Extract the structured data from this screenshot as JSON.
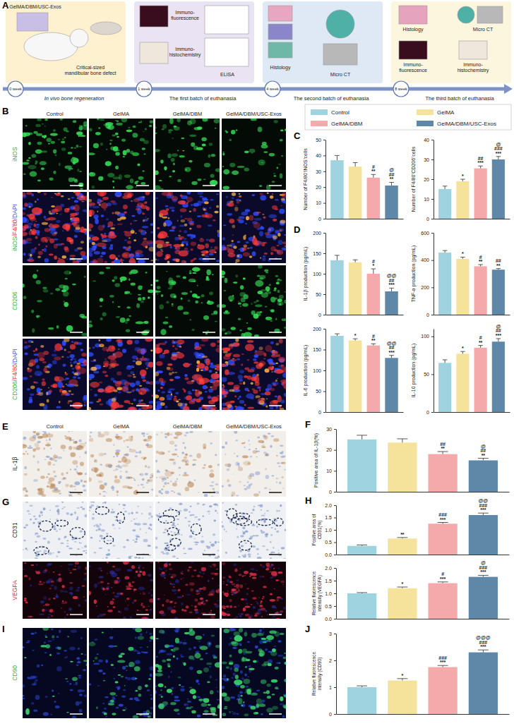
{
  "panel_labels": [
    "A",
    "B",
    "C",
    "D",
    "E",
    "F",
    "G",
    "H",
    "I",
    "J"
  ],
  "schematic": {
    "stages": [
      {
        "week": "0 week",
        "caption": "In vivo bone regeneration",
        "items": [
          [
            "GelMA/DBM/USC-Exos"
          ],
          [
            "Critical-sized",
            "mandibular bone defect"
          ]
        ]
      },
      {
        "week": "1 week",
        "caption": "The first batch of euthanasia",
        "items": [
          [
            "Immuno-",
            "fluorescence"
          ],
          [
            "Immuno-",
            "histochemistry"
          ],
          [
            "ELISA"
          ]
        ]
      },
      {
        "week": "4 week",
        "caption": "The second batch of euthanasia",
        "items": [
          [
            "Histology"
          ],
          [
            "Micro CT"
          ]
        ]
      },
      {
        "week": "8 week",
        "caption": "The third batch of euthanasia",
        "items": [
          [
            "Histology"
          ],
          [
            "Micro CT"
          ],
          [
            "Immuno-",
            "fluorescence"
          ],
          [
            "Immuno-",
            "histochemistry"
          ]
        ]
      }
    ]
  },
  "legend": [
    {
      "name": "Control",
      "color": "#9fd3df"
    },
    {
      "name": "GelMA",
      "color": "#f6e39b"
    },
    {
      "name": "GelMA/DBM",
      "color": "#f4a9ab"
    },
    {
      "name": "GelMA/DBM/USC-Exos",
      "color": "#5f88a8"
    }
  ],
  "image_panels": [
    {
      "columns": [
        "Control",
        "GelMA",
        "GelMA/DBM",
        "GelMA/DBM/USC-Exos"
      ],
      "rows": [
        {
          "label": [
            "iNOS"
          ],
          "colors": [
            "#2fb34c"
          ]
        },
        {
          "label": [
            "iNOS",
            "/F4/80",
            "/DAPI"
          ],
          "colors": [
            "#2fb34c",
            "#e53b3b",
            "#3a4fe0"
          ]
        },
        {
          "label": [
            "CD206"
          ],
          "colors": [
            "#2fb34c"
          ]
        },
        {
          "label": [
            "CD206",
            "/F4/80",
            "/DAPI"
          ],
          "colors": [
            "#2fb34c",
            "#e53b3b",
            "#3a4fe0"
          ]
        }
      ]
    },
    {
      "columns": [
        "Control",
        "GelMA",
        "GelMA/DBM",
        "GelMA/DBM/USC-Exos"
      ],
      "rows": [
        {
          "label": [
            "IL-1β"
          ],
          "colors": [
            "#222222"
          ]
        }
      ]
    },
    {
      "rows": [
        {
          "label": [
            "CD31"
          ],
          "colors": [
            "#222222"
          ]
        },
        {
          "label": [
            "VEGFA"
          ],
          "colors": [
            "#d02c3c"
          ]
        }
      ]
    },
    {
      "rows": [
        {
          "label": [
            "CD90"
          ],
          "colors": [
            "#2fb34c"
          ]
        }
      ]
    }
  ],
  "chart_data": [
    {
      "type": "bar",
      "ylabel": "Number of F4/80⁺iNOS⁺cells",
      "categories": [
        null,
        null,
        null,
        null
      ],
      "values": [
        37,
        33,
        26,
        21
      ],
      "errors": [
        3,
        2.5,
        2,
        2
      ],
      "colors": [
        "#9fd3df",
        "#f6e39b",
        "#f4a9ab",
        "#5f88a8"
      ],
      "annotations": [
        [],
        [],
        [
          "#",
          "**"
        ],
        [
          "@",
          "##",
          "**"
        ]
      ],
      "ylim": [
        0,
        50
      ],
      "yticks": [
        0,
        10,
        20,
        30,
        40,
        50
      ],
      "tick_labels": "y"
    },
    {
      "type": "bar",
      "ylabel": "Number of F4/80⁺CD206⁺cells",
      "categories": [
        null,
        null,
        null,
        null
      ],
      "values": [
        15,
        19,
        25.5,
        30
      ],
      "errors": [
        1.5,
        1,
        1.2,
        1.5
      ],
      "colors": [
        "#9fd3df",
        "#f6e39b",
        "#f4a9ab",
        "#5f88a8"
      ],
      "annotations": [
        [],
        [
          "*"
        ],
        [
          "##",
          "***"
        ],
        [
          "@",
          "###",
          "***"
        ]
      ],
      "ylim": [
        0,
        40
      ],
      "yticks": [
        0,
        10,
        20,
        30,
        40
      ],
      "tick_labels": "y"
    },
    {
      "type": "bar",
      "ylabel": "IL-1β production (pg/mL)",
      "categories": [
        null,
        null,
        null,
        null
      ],
      "values": [
        133,
        128,
        100,
        57
      ],
      "errors": [
        12,
        6,
        12,
        8
      ],
      "colors": [
        "#9fd3df",
        "#f6e39b",
        "#f4a9ab",
        "#5f88a8"
      ],
      "annotations": [
        [],
        [],
        [
          "#",
          "*"
        ],
        [
          "@@",
          "##",
          "***"
        ]
      ],
      "ylim": [
        0,
        200
      ],
      "yticks": [
        0,
        50,
        100,
        150,
        200
      ],
      "tick_labels": "y"
    },
    {
      "type": "bar",
      "ylabel": "TNF-α production (pg/mL)",
      "categories": [
        null,
        null,
        null,
        null
      ],
      "values": [
        455,
        410,
        355,
        330
      ],
      "errors": [
        15,
        12,
        12,
        8
      ],
      "colors": [
        "#9fd3df",
        "#f6e39b",
        "#f4a9ab",
        "#5f88a8"
      ],
      "annotations": [
        [],
        [
          "*"
        ],
        [
          "#",
          "**"
        ],
        [
          "##",
          "**"
        ]
      ],
      "ylim": [
        0,
        600
      ],
      "yticks": [
        0,
        200,
        400,
        600
      ],
      "tick_labels": "y"
    },
    {
      "type": "bar",
      "ylabel": "IL-6 production (pg/mL)",
      "categories": [
        null,
        null,
        null,
        null
      ],
      "values": [
        183,
        172,
        160,
        130
      ],
      "errors": [
        5,
        4,
        4,
        6
      ],
      "colors": [
        "#9fd3df",
        "#f6e39b",
        "#f4a9ab",
        "#5f88a8"
      ],
      "annotations": [
        [],
        [
          "*"
        ],
        [
          "#",
          "**"
        ],
        [
          "@@",
          "##",
          "***"
        ]
      ],
      "ylim": [
        0,
        200
      ],
      "yticks": [
        0,
        50,
        100,
        150,
        200
      ],
      "tick_labels": "y"
    },
    {
      "type": "bar",
      "ylabel": "IL-10 production (pg/mL)",
      "categories": [
        null,
        null,
        null,
        null
      ],
      "values": [
        65,
        77,
        85,
        93
      ],
      "errors": [
        4,
        3,
        3,
        4
      ],
      "colors": [
        "#9fd3df",
        "#f6e39b",
        "#f4a9ab",
        "#5f88a8"
      ],
      "annotations": [
        [],
        [
          "*"
        ],
        [
          "#",
          "**"
        ],
        [
          "@",
          "##",
          "***"
        ]
      ],
      "ylim": [
        0,
        110
      ],
      "yticks": [
        0,
        50,
        100
      ],
      "tick_labels": "y"
    },
    {
      "type": "bar",
      "ylabel": "Positive area of IL-1β(%)",
      "categories": [
        null,
        null,
        null,
        null
      ],
      "values": [
        25,
        23.5,
        18,
        15
      ],
      "errors": [
        2,
        1.8,
        1.2,
        1
      ],
      "colors": [
        "#9fd3df",
        "#f6e39b",
        "#f4a9ab",
        "#5f88a8"
      ],
      "annotations": [
        [],
        [],
        [
          "##",
          "**"
        ],
        [
          "@",
          "##",
          "**"
        ]
      ],
      "ylim": [
        0,
        30
      ],
      "yticks": [
        0,
        10,
        20,
        30
      ],
      "tick_labels": "y"
    },
    {
      "type": "bar",
      "ylabel": [
        "Positive area of",
        "CD31(%)"
      ],
      "categories": [
        null,
        null,
        null,
        null
      ],
      "values": [
        0.35,
        0.65,
        1.25,
        1.6
      ],
      "errors": [
        0.04,
        0.04,
        0.05,
        0.08
      ],
      "colors": [
        "#9fd3df",
        "#f6e39b",
        "#f4a9ab",
        "#5f88a8"
      ],
      "annotations": [
        [],
        [
          "**"
        ],
        [
          "###",
          "***"
        ],
        [
          "@@",
          "###",
          "***"
        ]
      ],
      "ylim": [
        0,
        2
      ],
      "yticks": [
        {
          "value": 0,
          "label": "0.0"
        },
        0.5,
        {
          "value": 1,
          "label": "1.0"
        },
        1.5,
        {
          "value": 2,
          "label": "2.0"
        }
      ],
      "tick_labels": "y"
    },
    {
      "type": "bar",
      "ylabel": [
        "Relative fluorescence",
        "intensity (VEGFA)"
      ],
      "categories": [
        null,
        null,
        null,
        null
      ],
      "values": [
        1.0,
        1.2,
        1.4,
        1.65
      ],
      "errors": [
        0.03,
        0.05,
        0.05,
        0.06
      ],
      "colors": [
        "#9fd3df",
        "#f6e39b",
        "#f4a9ab",
        "#5f88a8"
      ],
      "annotations": [
        [],
        [
          "*"
        ],
        [
          "#",
          "***"
        ],
        [
          "@",
          "###",
          "***"
        ]
      ],
      "ylim": [
        0,
        2
      ],
      "yticks": [
        {
          "value": 0,
          "label": "0.0"
        },
        0.5,
        {
          "value": 1,
          "label": "1.0"
        },
        1.5,
        {
          "value": 2,
          "label": "2.0"
        }
      ],
      "tick_labels": "y"
    },
    {
      "type": "bar",
      "ylabel": [
        "Relative fluorescence",
        "intensity (CD90)"
      ],
      "categories": [
        null,
        null,
        null,
        null
      ],
      "values": [
        1.0,
        1.25,
        1.75,
        2.3
      ],
      "errors": [
        0.05,
        0.07,
        0.06,
        0.09
      ],
      "colors": [
        "#9fd3df",
        "#f6e39b",
        "#f4a9ab",
        "#5f88a8"
      ],
      "annotations": [
        [],
        [
          "*"
        ],
        [
          "###",
          "***"
        ],
        [
          "@@@",
          "###",
          "***"
        ]
      ],
      "ylim": [
        0,
        3
      ],
      "yticks": [
        0,
        1,
        2,
        3
      ],
      "tick_labels": "y"
    }
  ]
}
